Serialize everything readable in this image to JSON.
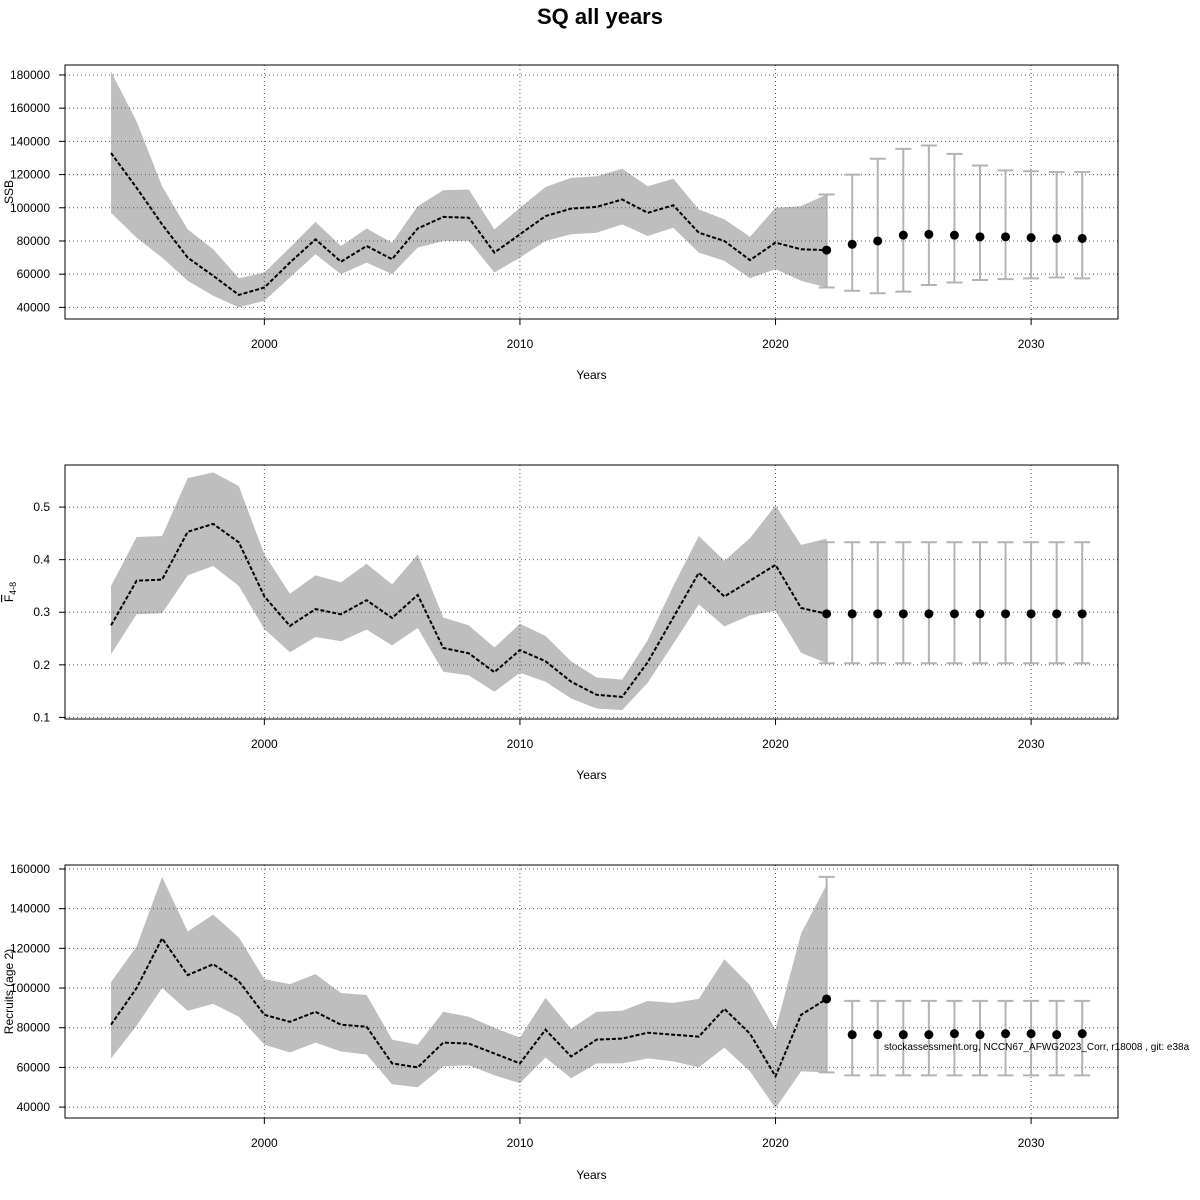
{
  "title": "SQ all years",
  "footnote": "stockassessment.org, NCCN67_AFWG2023_Corr, r18008 , git: e38a",
  "colors": {
    "band": "#bebebe",
    "errorbar": "#b3b3b3",
    "line": "#000000",
    "grid": "#555555"
  },
  "chart_data": [
    {
      "type": "line",
      "ylabel": "SSB",
      "xlabel": "Years",
      "xlim": [
        1992.2,
        2033.4
      ],
      "ylim": [
        33000,
        186000
      ],
      "x_ticks": [
        2000,
        2010,
        2020,
        2030
      ],
      "y_ticks": [
        40000,
        60000,
        80000,
        100000,
        120000,
        140000,
        160000,
        180000
      ],
      "y_tick_labels": [
        "40000",
        "60000",
        "80000",
        "100000",
        "120000",
        "140000",
        "160000",
        "180000"
      ],
      "grid": true,
      "x": [
        1994,
        1995,
        1996,
        1997,
        1998,
        1999,
        2000,
        2001,
        2002,
        2003,
        2004,
        2005,
        2006,
        2007,
        2008,
        2009,
        2010,
        2011,
        2012,
        2013,
        2014,
        2015,
        2016,
        2017,
        2018,
        2019,
        2020,
        2021,
        2022
      ],
      "estimate": [
        133000,
        112000,
        90000,
        70000,
        59000,
        47500,
        52000,
        67000,
        81000,
        67500,
        77000,
        69000,
        87500,
        94500,
        94000,
        73000,
        84000,
        95000,
        99500,
        100500,
        105000,
        97000,
        101500,
        85000,
        80000,
        68500,
        79000,
        75000,
        74500
      ],
      "upper": [
        182000,
        152000,
        113000,
        87000,
        75000,
        57500,
        61000,
        76000,
        91500,
        77000,
        87500,
        79000,
        101000,
        110500,
        111000,
        87000,
        100000,
        112500,
        118000,
        119000,
        123500,
        113000,
        117500,
        99000,
        93000,
        82500,
        100000,
        101000,
        108000
      ],
      "lower": [
        97000,
        82000,
        70000,
        56000,
        47000,
        40000,
        44000,
        58000,
        72000,
        60000,
        67000,
        60000,
        76000,
        80000,
        80000,
        61000,
        70000,
        80000,
        84000,
        85000,
        90000,
        83000,
        88000,
        73000,
        68000,
        57500,
        63000,
        56000,
        52000
      ],
      "forecast": {
        "x": [
          2022,
          2023,
          2024,
          2025,
          2026,
          2027,
          2028,
          2029,
          2030,
          2031,
          2032
        ],
        "median": [
          74500,
          78000,
          80000,
          83500,
          84000,
          83500,
          82500,
          82500,
          82000,
          81500,
          81500
        ],
        "upper": [
          108000,
          120000,
          129500,
          135500,
          137500,
          132500,
          125500,
          122500,
          122000,
          121500,
          121500
        ],
        "lower": [
          52000,
          50000,
          48500,
          49500,
          53500,
          55000,
          56500,
          57000,
          57500,
          58000,
          57500
        ]
      }
    },
    {
      "type": "line",
      "ylabel": "F",
      "ylabel_sub": "4-8",
      "xlabel": "Years",
      "xlim": [
        1992.2,
        2033.4
      ],
      "ylim": [
        0.097,
        0.58
      ],
      "x_ticks": [
        2000,
        2010,
        2020,
        2030
      ],
      "y_ticks": [
        0.1,
        0.2,
        0.3,
        0.4,
        0.5
      ],
      "y_tick_labels": [
        "0.1",
        "0.2",
        "0.3",
        "0.4",
        "0.5"
      ],
      "grid": true,
      "x": [
        1994,
        1995,
        1996,
        1997,
        1998,
        1999,
        2000,
        2001,
        2002,
        2003,
        2004,
        2005,
        2006,
        2007,
        2008,
        2009,
        2010,
        2011,
        2012,
        2013,
        2014,
        2015,
        2016,
        2017,
        2018,
        2019,
        2020,
        2021,
        2022
      ],
      "estimate": [
        0.275,
        0.36,
        0.362,
        0.453,
        0.468,
        0.433,
        0.33,
        0.274,
        0.306,
        0.296,
        0.323,
        0.289,
        0.333,
        0.232,
        0.222,
        0.186,
        0.228,
        0.207,
        0.168,
        0.143,
        0.139,
        0.205,
        0.29,
        0.375,
        0.33,
        0.36,
        0.39,
        0.308,
        0.297
      ],
      "upper": [
        0.35,
        0.443,
        0.445,
        0.555,
        0.566,
        0.54,
        0.41,
        0.335,
        0.37,
        0.357,
        0.392,
        0.353,
        0.41,
        0.29,
        0.275,
        0.233,
        0.278,
        0.255,
        0.207,
        0.176,
        0.172,
        0.247,
        0.35,
        0.445,
        0.398,
        0.441,
        0.503,
        0.428,
        0.44
      ],
      "lower": [
        0.22,
        0.296,
        0.298,
        0.37,
        0.388,
        0.35,
        0.268,
        0.224,
        0.253,
        0.245,
        0.267,
        0.237,
        0.27,
        0.187,
        0.18,
        0.149,
        0.185,
        0.168,
        0.136,
        0.117,
        0.114,
        0.166,
        0.24,
        0.315,
        0.273,
        0.294,
        0.303,
        0.223,
        0.203
      ],
      "forecast": {
        "x": [
          2022,
          2023,
          2024,
          2025,
          2026,
          2027,
          2028,
          2029,
          2030,
          2031,
          2032
        ],
        "median": [
          0.297,
          0.297,
          0.297,
          0.297,
          0.297,
          0.297,
          0.297,
          0.297,
          0.297,
          0.297,
          0.297
        ],
        "upper": [
          0.433,
          0.433,
          0.433,
          0.433,
          0.433,
          0.433,
          0.433,
          0.433,
          0.433,
          0.433,
          0.433
        ],
        "lower": [
          0.203,
          0.203,
          0.203,
          0.203,
          0.203,
          0.203,
          0.203,
          0.203,
          0.203,
          0.203,
          0.203
        ]
      }
    },
    {
      "type": "line",
      "ylabel": "Recruits (age 2)",
      "xlabel": "Years",
      "xlim": [
        1992.2,
        2033.4
      ],
      "ylim": [
        34500,
        162000
      ],
      "x_ticks": [
        2000,
        2010,
        2020,
        2030
      ],
      "y_ticks": [
        40000,
        60000,
        80000,
        100000,
        120000,
        140000,
        160000
      ],
      "y_tick_labels": [
        "40000",
        "60000",
        "80000",
        "100000",
        "120000",
        "140000",
        "160000"
      ],
      "grid": true,
      "x": [
        1994,
        1995,
        1996,
        1997,
        1998,
        1999,
        2000,
        2001,
        2002,
        2003,
        2004,
        2005,
        2006,
        2007,
        2008,
        2009,
        2010,
        2011,
        2012,
        2013,
        2014,
        2015,
        2016,
        2017,
        2018,
        2019,
        2020,
        2021,
        2022
      ],
      "estimate": [
        81500,
        100000,
        125000,
        106500,
        112000,
        103500,
        86500,
        83000,
        88000,
        81500,
        80500,
        62000,
        60000,
        72500,
        72000,
        67000,
        62000,
        79000,
        65500,
        74000,
        74500,
        77500,
        76500,
        75500,
        89500,
        77000,
        55500,
        86500,
        94500
      ],
      "upper": [
        103000,
        121000,
        156000,
        128500,
        137000,
        125500,
        104500,
        102000,
        107000,
        97500,
        96500,
        74000,
        71500,
        88000,
        85500,
        80000,
        75000,
        95000,
        79500,
        88000,
        88500,
        93500,
        92500,
        94500,
        114500,
        101500,
        79000,
        127500,
        152000
      ],
      "lower": [
        64500,
        81000,
        100000,
        88500,
        92000,
        85500,
        71500,
        67500,
        72500,
        68000,
        66500,
        51500,
        50000,
        60500,
        61000,
        56000,
        52000,
        65000,
        54500,
        62000,
        62000,
        64500,
        63000,
        60000,
        70000,
        58000,
        39500,
        58000,
        57500
      ],
      "forecast": {
        "x": [
          2022,
          2023,
          2024,
          2025,
          2026,
          2027,
          2028,
          2029,
          2030,
          2031,
          2032
        ],
        "median": [
          94500,
          76500,
          76500,
          76500,
          76500,
          77000,
          76500,
          77000,
          77000,
          76500,
          77000
        ],
        "upper": [
          156000,
          93500,
          93500,
          93500,
          93500,
          93500,
          93500,
          93500,
          93500,
          93500,
          93500
        ],
        "lower": [
          57500,
          56000,
          56000,
          56000,
          56000,
          56000,
          56000,
          56000,
          56000,
          56000,
          56000
        ]
      }
    }
  ]
}
